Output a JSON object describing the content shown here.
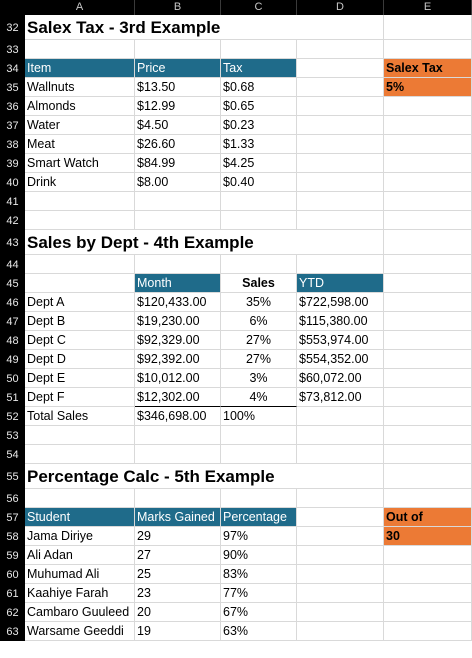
{
  "columns": [
    "A",
    "B",
    "C",
    "D",
    "E"
  ],
  "rows": [
    {
      "n": "32",
      "c": {
        "A": "Salex Tax - 3rd Example"
      }
    },
    {
      "n": "33",
      "c": {}
    },
    {
      "n": "34",
      "c": {
        "A": "Item",
        "B": "Price",
        "C": "Tax",
        "E": "Salex Tax"
      }
    },
    {
      "n": "35",
      "c": {
        "A": "Wallnuts",
        "B": "$13.50",
        "C": "$0.68",
        "E": "5%"
      }
    },
    {
      "n": "36",
      "c": {
        "A": "Almonds",
        "B": "$12.99",
        "C": "$0.65"
      }
    },
    {
      "n": "37",
      "c": {
        "A": "Water",
        "B": "$4.50",
        "C": "$0.23"
      }
    },
    {
      "n": "38",
      "c": {
        "A": "Meat",
        "B": "$26.60",
        "C": "$1.33"
      }
    },
    {
      "n": "39",
      "c": {
        "A": "Smart Watch",
        "B": "$84.99",
        "C": "$4.25"
      }
    },
    {
      "n": "40",
      "c": {
        "A": "Drink",
        "B": "$8.00",
        "C": "$0.40"
      }
    },
    {
      "n": "41",
      "c": {}
    },
    {
      "n": "42",
      "c": {}
    },
    {
      "n": "43",
      "c": {
        "A": "Sales by Dept - 4th Example"
      }
    },
    {
      "n": "44",
      "c": {}
    },
    {
      "n": "45",
      "c": {
        "B": "Month",
        "C": "Sales",
        "D": "YTD"
      }
    },
    {
      "n": "46",
      "c": {
        "A": "Dept A",
        "B": "$120,433.00",
        "C": "35%",
        "D": "$722,598.00"
      }
    },
    {
      "n": "47",
      "c": {
        "A": "Dept B",
        "B": "$19,230.00",
        "C": "6%",
        "D": "$115,380.00"
      }
    },
    {
      "n": "48",
      "c": {
        "A": "Dept C",
        "B": "$92,329.00",
        "C": "27%",
        "D": "$553,974.00"
      }
    },
    {
      "n": "49",
      "c": {
        "A": "Dept D",
        "B": "$92,392.00",
        "C": "27%",
        "D": "$554,352.00"
      }
    },
    {
      "n": "50",
      "c": {
        "A": "Dept E",
        "B": "$10,012.00",
        "C": "3%",
        "D": "$60,072.00"
      }
    },
    {
      "n": "51",
      "c": {
        "A": "Dept F",
        "B": "$12,302.00",
        "C": "4%",
        "D": "$73,812.00"
      }
    },
    {
      "n": "52",
      "c": {
        "A": "Total Sales",
        "B": "$346,698.00",
        "C": "100%"
      }
    },
    {
      "n": "53",
      "c": {}
    },
    {
      "n": "54",
      "c": {}
    },
    {
      "n": "55",
      "c": {
        "A": "Percentage Calc - 5th Example"
      }
    },
    {
      "n": "56",
      "c": {}
    },
    {
      "n": "57",
      "c": {
        "A": "Student",
        "B": "Marks Gained",
        "C": "Percentage",
        "E": "Out of"
      }
    },
    {
      "n": "58",
      "c": {
        "A": "Jama Diriye",
        "B": "29",
        "C": "97%",
        "E": "30"
      }
    },
    {
      "n": "59",
      "c": {
        "A": "Ali Adan",
        "B": "27",
        "C": "90%"
      }
    },
    {
      "n": "60",
      "c": {
        "A": "Muhumad Ali",
        "B": "25",
        "C": "83%"
      }
    },
    {
      "n": "61",
      "c": {
        "A": "Kaahiye Farah",
        "B": "23",
        "C": "77%"
      }
    },
    {
      "n": "62",
      "c": {
        "A": "Cambaro Guuleed",
        "B": "20",
        "C": "67%"
      }
    },
    {
      "n": "63",
      "c": {
        "A": "Warsame Geeddi",
        "B": "19",
        "C": "63%"
      }
    }
  ],
  "colors": {
    "header_fill": "#1f6b8a",
    "accent_fill": "#ec7a35",
    "headers_bg": "#000000"
  }
}
